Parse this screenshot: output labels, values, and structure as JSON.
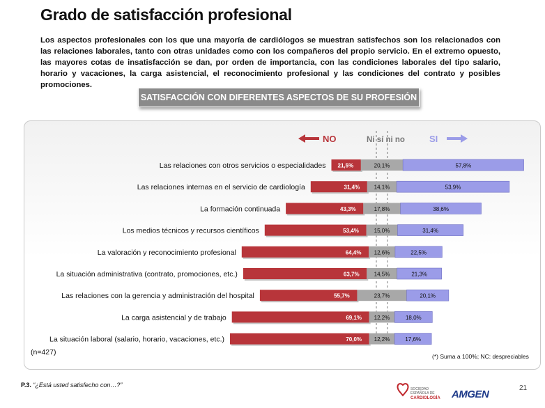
{
  "header": {
    "title": "Grado de satisfacción profesional",
    "intro": "Los aspectos profesionales con los que una mayoría de cardiólogos se muestran satisfechos son los relacionados con las relaciones laborales, tanto con otras unidades como con los compañeros del propio servicio. En el extremo opuesto, las mayores cotas de insatisfacción se dan, por orden de importancia, con las condiciones laborales del tipo salario, horario y vacaciones, la carga asistencial, el reconocimiento profesional y las condiciones del contrato y posibles promociones.",
    "section_label": "SATISFACCIÓN CON DIFERENTES ASPECTOS DE SU PROFESIÓN"
  },
  "chart_data": {
    "type": "bar",
    "orientation": "horizontal-diverging",
    "legend": [
      "NO",
      "Ni sí ni no",
      "SI"
    ],
    "colors": {
      "no": "#b8353a",
      "neutral": "#a8a8a8",
      "si": "#9b9ce8"
    },
    "categories": [
      "Las relaciones con otros servicios o especialidades",
      "Las relaciones internas en el servicio de  cardiología",
      "La formación continuada",
      "Los medios técnicos y recursos científicos",
      "La valoración y reconocimiento profesional",
      "La situación administrativa (contrato, promociones, etc.)",
      "Las relaciones con la gerencia y administración del hospital",
      "La carga asistencial y de trabajo",
      "La situación laboral (salario, horario, vacaciones, etc.)"
    ],
    "series": [
      {
        "name": "NO",
        "values": [
          21.5,
          31.4,
          43.3,
          53.4,
          64.4,
          63.7,
          55.7,
          69.1,
          70.0
        ],
        "labels": [
          "21,5%",
          "31,4%",
          "43,3%",
          "53,4%",
          "64,4%",
          "63,7%",
          "55,7%",
          "69,1%",
          "70,0%"
        ]
      },
      {
        "name": "Ni sí ni no",
        "values": [
          20.1,
          14.1,
          17.8,
          15.0,
          12.6,
          14.5,
          23.7,
          12.2,
          12.2
        ],
        "labels": [
          "20,1%",
          "14,1%",
          "17,8%",
          "15,0%",
          "12,6%",
          "14,5%",
          "23,7%",
          "12,2%",
          "12,2%"
        ]
      },
      {
        "name": "SI",
        "values": [
          57.8,
          53.9,
          38.6,
          31.4,
          22.5,
          21.3,
          20.1,
          18.0,
          17.6
        ],
        "labels": [
          "57,8%",
          "53,9%",
          "38,6%",
          "31,4%",
          "22,5%",
          "21,3%",
          "20,1%",
          "18,0%",
          "17,6%"
        ]
      }
    ]
  },
  "footer": {
    "sample": "(n=427)",
    "note": "(*) Suma a 100%; NC: despreciables",
    "question_prefix": "P.3.",
    "question_text": "“¿Está usted satisfecho con…?”",
    "page": "21",
    "logo_sec_lines": [
      "SOCIEDAD",
      "ESPAÑOLA DE",
      "CARDIOLOGÍA"
    ],
    "logo_amgen": "AMGEN"
  }
}
